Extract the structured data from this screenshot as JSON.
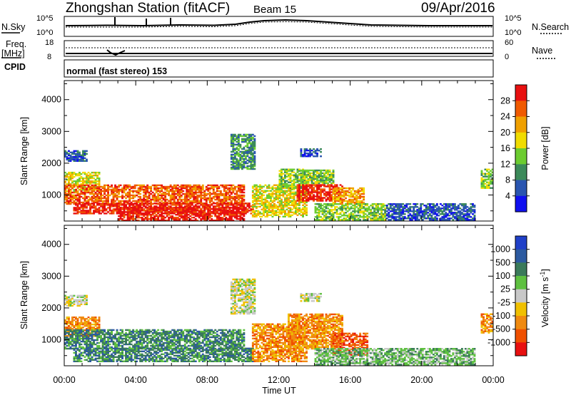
{
  "header": {
    "station": "Zhongshan Station (fitACF)",
    "beam": "Beam 15",
    "date": "09/Apr/2016"
  },
  "top_panel": {
    "left_label_nsky": "N.Sky",
    "left_tick_high": "10^5",
    "left_tick_low": "10^0",
    "right_tick_high": "10^5",
    "right_tick_low": "10^0",
    "right_label_nsearch": "N.Search",
    "freq_label_line1": "Freq.",
    "freq_label_line2": "[MHz]",
    "freq_tick_high": "18",
    "freq_tick_low": "8",
    "nave_tick_high": "60",
    "nave_tick_low": "0",
    "nave_label": "Nave",
    "cpid_label": "CPID",
    "cpid_text": "normal (fast stereo) 153"
  },
  "axes": {
    "ylabel": "Slant Range [km]",
    "xlabel": "Time UT",
    "x_ticks": [
      "00:00",
      "04:00",
      "08:00",
      "12:00",
      "16:00",
      "20:00",
      "00:00"
    ],
    "y_ticks": [
      "1000",
      "2000",
      "3000",
      "4000"
    ]
  },
  "colorbars": {
    "power": {
      "label": "Power [dB]",
      "ticks": [
        "4",
        "8",
        "12",
        "16",
        "20",
        "24",
        "28"
      ],
      "colors": [
        "#1010f0",
        "#2a55b0",
        "#3c8a5a",
        "#6ccc30",
        "#f0dc00",
        "#f0a000",
        "#f05a00",
        "#e81010"
      ]
    },
    "velocity": {
      "label": "Velocity [m s^-1]",
      "label_main": "Velocity [m s",
      "label_sup": "-1",
      "label_end": "]",
      "ticks": [
        "1000",
        "500",
        "100",
        "25",
        "-25",
        "-100",
        "-500",
        "-1000"
      ],
      "colors": [
        "#2040c8",
        "#2c5aa0",
        "#3a7a5a",
        "#5ec040",
        "#c8c8c8",
        "#f0c000",
        "#f08a10",
        "#f05000",
        "#e81010"
      ]
    }
  },
  "chart_data": [
    {
      "type": "heatmap",
      "title": "Power",
      "xlabel": "Time UT",
      "ylabel": "Slant Range [km]",
      "xlim": [
        "00:00",
        "24:00"
      ],
      "ylim": [
        180,
        4600
      ],
      "colorbar_label": "Power [dB]",
      "colorbar_range": [
        0,
        32
      ],
      "regions": [
        {
          "t0": 0.0,
          "t1": 1.3,
          "r0": 2050,
          "r1": 2400,
          "level": 1
        },
        {
          "t0": 0.0,
          "t1": 2.0,
          "r0": 1100,
          "r1": 1700,
          "level": 4
        },
        {
          "t0": 0.0,
          "t1": 10.0,
          "r0": 700,
          "r1": 1300,
          "level": 6
        },
        {
          "t0": 0.5,
          "t1": 10.5,
          "r0": 400,
          "r1": 750,
          "level": 7
        },
        {
          "t0": 3.0,
          "t1": 10.0,
          "r0": 180,
          "r1": 600,
          "level": 7
        },
        {
          "t0": 9.3,
          "t1": 10.6,
          "r0": 1800,
          "r1": 2900,
          "level": 2
        },
        {
          "t0": 10.5,
          "t1": 13.5,
          "r0": 300,
          "r1": 1300,
          "level": 4
        },
        {
          "t0": 12.0,
          "t1": 13.3,
          "r0": 1200,
          "r1": 1800,
          "level": 3
        },
        {
          "t0": 13.0,
          "t1": 15.5,
          "r0": 800,
          "r1": 1300,
          "level": 7
        },
        {
          "t0": 13.2,
          "t1": 15.0,
          "r0": 1350,
          "r1": 1800,
          "level": 3
        },
        {
          "t0": 13.2,
          "t1": 14.3,
          "r0": 2200,
          "r1": 2450,
          "level": 1
        },
        {
          "t0": 15.0,
          "t1": 16.8,
          "r0": 700,
          "r1": 1200,
          "level": 5
        },
        {
          "t0": 14.0,
          "t1": 18.0,
          "r0": 200,
          "r1": 700,
          "level": 3
        },
        {
          "t0": 18.0,
          "t1": 23.0,
          "r0": 200,
          "r1": 700,
          "level": 1
        },
        {
          "t0": 23.3,
          "t1": 24.0,
          "r0": 1200,
          "r1": 1800,
          "level": 3
        }
      ]
    },
    {
      "type": "heatmap",
      "title": "Velocity",
      "xlabel": "Time UT",
      "ylabel": "Slant Range [km]",
      "xlim": [
        "00:00",
        "24:00"
      ],
      "ylim": [
        180,
        4600
      ],
      "colorbar_label": "Velocity [m s^-1]",
      "colorbar_range": [
        -1000,
        1000
      ],
      "regions": [
        {
          "t0": 0.0,
          "t1": 1.3,
          "r0": 2050,
          "r1": 2400,
          "level": 4
        },
        {
          "t0": 0.0,
          "t1": 2.0,
          "r0": 1100,
          "r1": 1700,
          "level": 6
        },
        {
          "t0": 0.0,
          "t1": 10.0,
          "r0": 700,
          "r1": 1300,
          "level": 2
        },
        {
          "t0": 0.5,
          "t1": 10.5,
          "r0": 300,
          "r1": 750,
          "level": 2
        },
        {
          "t0": 9.3,
          "t1": 10.6,
          "r0": 1800,
          "r1": 2900,
          "level": 4
        },
        {
          "t0": 10.5,
          "t1": 13.5,
          "r0": 300,
          "r1": 1500,
          "level": 6
        },
        {
          "t0": 12.5,
          "t1": 15.5,
          "r0": 700,
          "r1": 1800,
          "level": 6
        },
        {
          "t0": 13.2,
          "t1": 14.3,
          "r0": 2200,
          "r1": 2450,
          "level": 4
        },
        {
          "t0": 15.0,
          "t1": 17.0,
          "r0": 500,
          "r1": 1200,
          "level": 7
        },
        {
          "t0": 14.0,
          "t1": 18.0,
          "r0": 200,
          "r1": 700,
          "level": 3
        },
        {
          "t0": 18.0,
          "t1": 23.0,
          "r0": 200,
          "r1": 700,
          "level": 3
        },
        {
          "t0": 23.3,
          "t1": 24.0,
          "r0": 1200,
          "r1": 1800,
          "level": 6
        }
      ]
    }
  ]
}
